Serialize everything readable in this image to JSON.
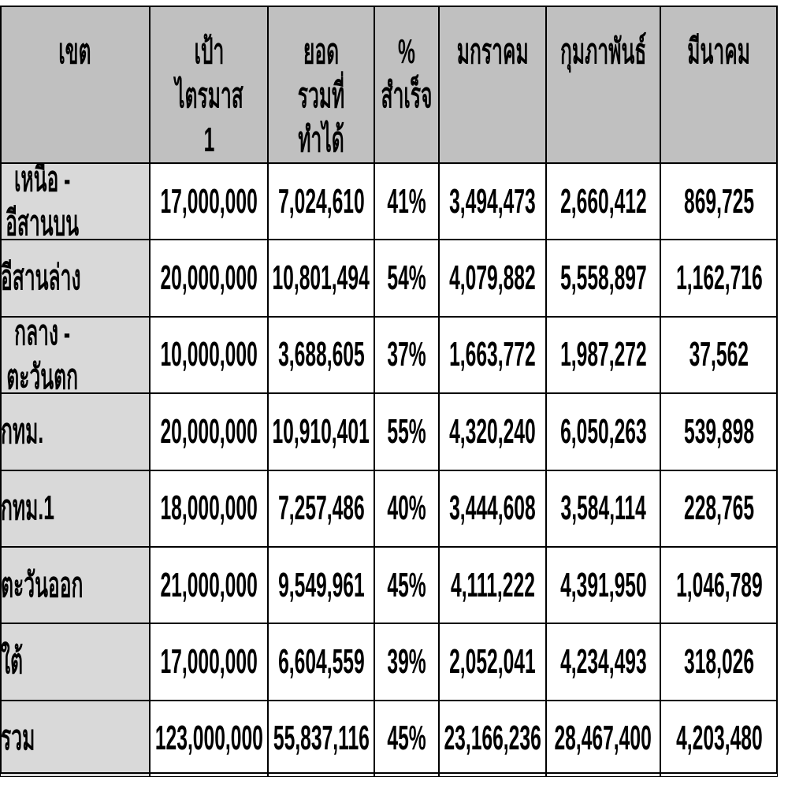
{
  "table": {
    "header": [
      "เขต",
      "เป้าไตรมาส 1",
      "ยอดรวมที่\nทำได้",
      "%\nสำเร็จ",
      "มกราคม",
      "กุมภาพันธ์",
      "มีนาคม"
    ],
    "rows": [
      [
        "เหนือ - อีสานบน",
        "17,000,000",
        "7,024,610",
        "41%",
        "3,494,473",
        "2,660,412",
        "869,725"
      ],
      [
        "อีสานล่าง",
        "20,000,000",
        "10,801,494",
        "54%",
        "4,079,882",
        "5,558,897",
        "1,162,716"
      ],
      [
        "กลาง - ตะวันตก",
        "10,000,000",
        "3,688,605",
        "37%",
        "1,663,772",
        "1,987,272",
        "37,562"
      ],
      [
        "กทม.",
        "20,000,000",
        "10,910,401",
        "55%",
        "4,320,240",
        "6,050,263",
        "539,898"
      ],
      [
        "กทม.1",
        "18,000,000",
        "7,257,486",
        "40%",
        "3,444,608",
        "3,584,114",
        "228,765"
      ],
      [
        "ตะวันออก",
        "21,000,000",
        "9,549,961",
        "45%",
        "4,111,222",
        "4,391,950",
        "1,046,789"
      ],
      [
        "ใต้",
        "17,000,000",
        "6,604,559",
        "39%",
        "2,052,041",
        "4,234,493",
        "318,026"
      ],
      [
        "รวม",
        "123,000,000",
        "55,837,116",
        "45%",
        "23,166,236",
        "28,467,400",
        "4,203,480"
      ]
    ]
  }
}
